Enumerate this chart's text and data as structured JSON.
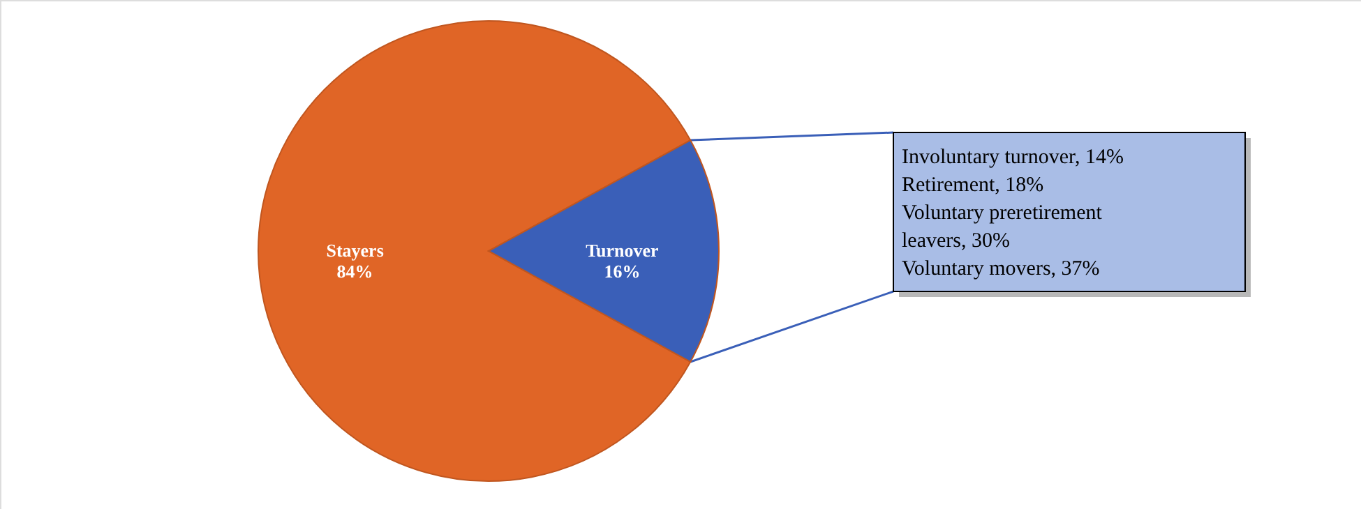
{
  "chart_data": {
    "type": "pie",
    "categories": [
      "Stayers",
      "Turnover"
    ],
    "values": [
      84,
      16
    ],
    "colors": [
      "#e06526",
      "#3a5fb8"
    ],
    "value_labels": [
      "84%",
      "16%"
    ],
    "annotations": [
      "Involuntary turnover, 14%",
      "Retirement, 18%",
      "Voluntary preretirement",
      "leavers, 30%",
      "Voluntary movers, 37%"
    ]
  }
}
